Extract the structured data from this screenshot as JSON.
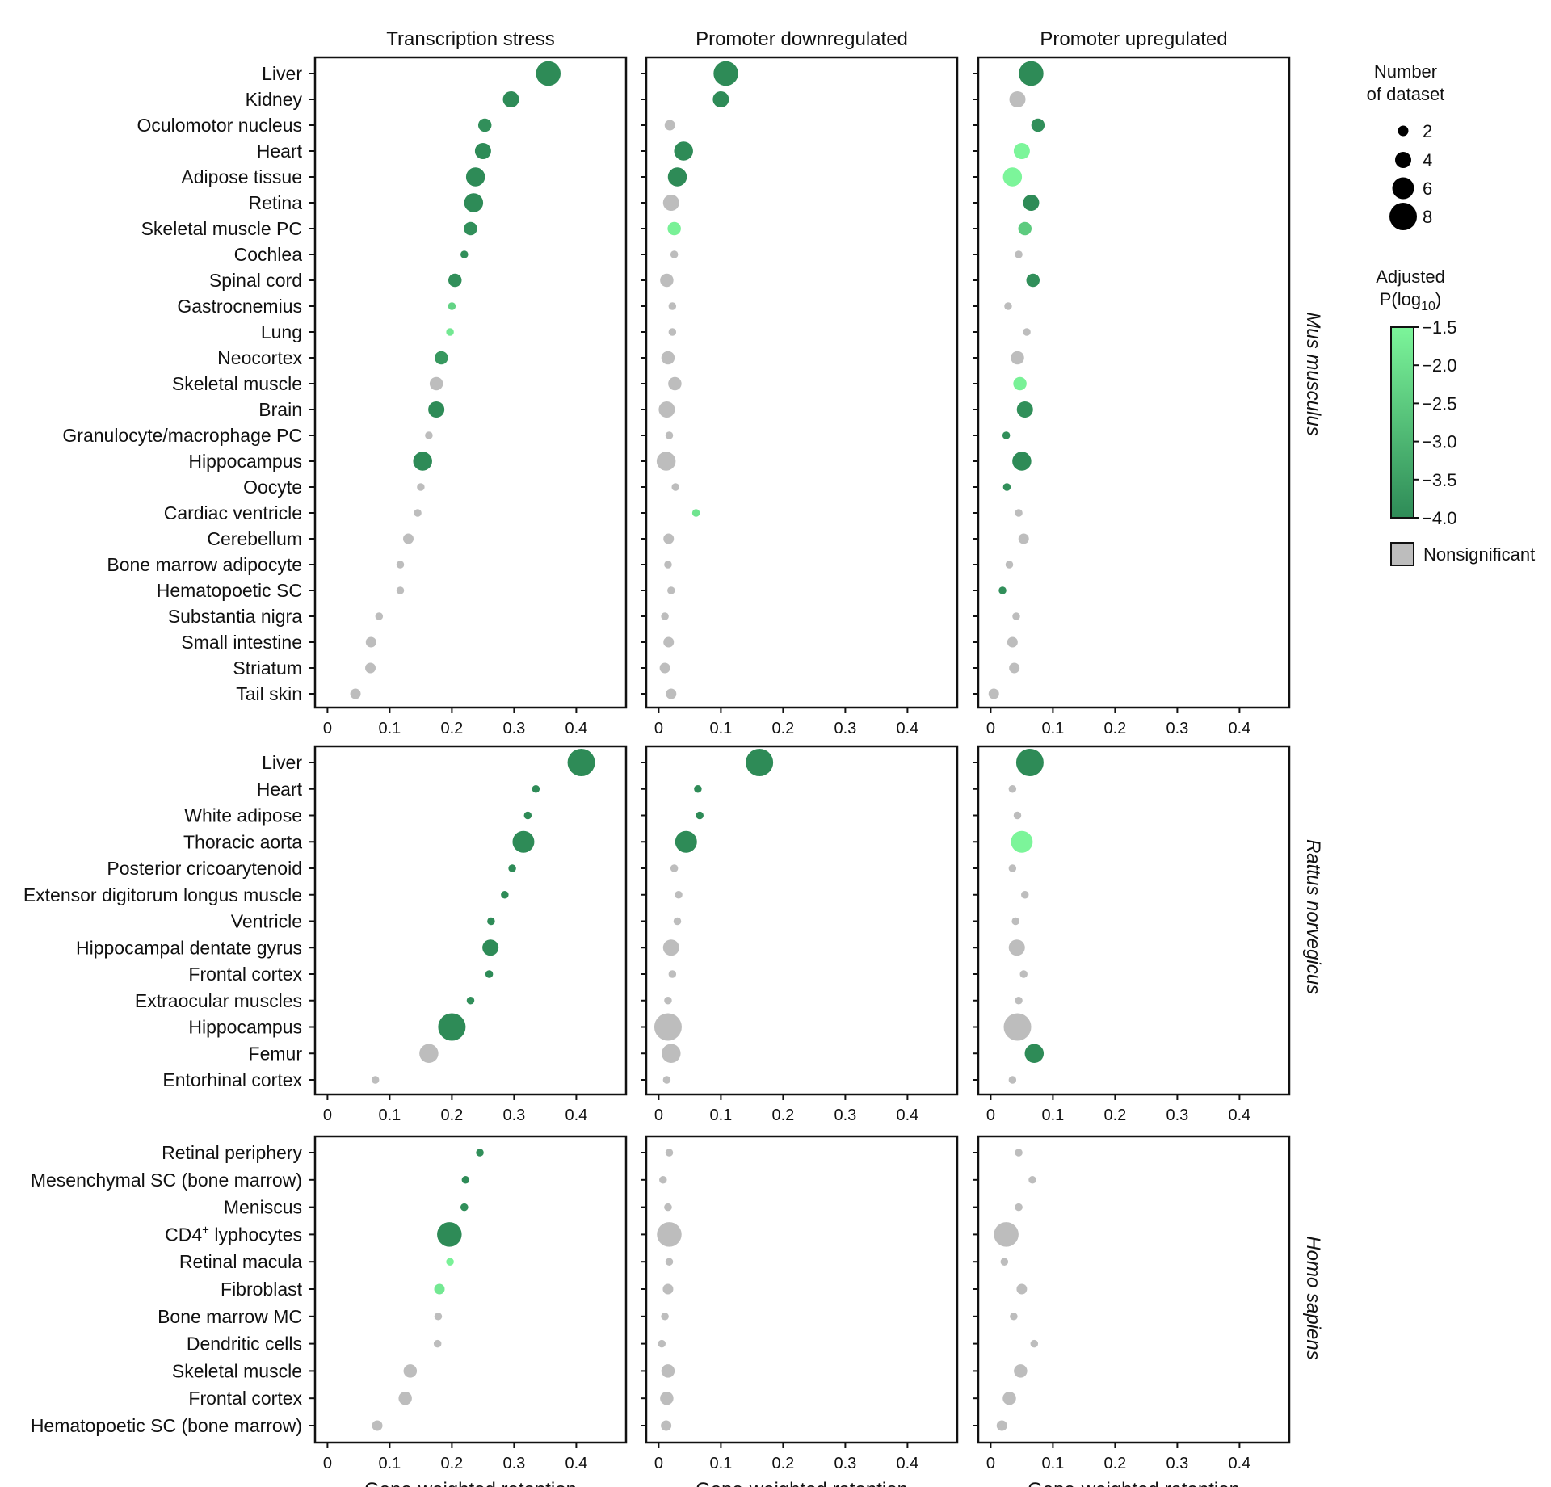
{
  "chart_data": {
    "type": "scatter",
    "column_titles": [
      "Transcription stress",
      "Promoter downregulated",
      "Promoter upregulated"
    ],
    "xlabel": "Gene-weighted retention",
    "xlim": [
      -0.02,
      0.48
    ],
    "xticks": [
      0,
      0.1,
      0.2,
      0.3,
      0.4
    ],
    "xtick_labels": [
      "0",
      "0.1",
      "0.2",
      "0.3",
      "0.4"
    ],
    "colors": {
      "p_low": "#7CF59A",
      "p_high": "#2E8B57",
      "nonsignificant": "#BDBDBD",
      "frame": "#111111"
    },
    "legend": {
      "size_title_line1": "Number",
      "size_title_line2": "of dataset",
      "sizes": [
        2,
        4,
        6,
        8
      ],
      "size_labels": [
        "2",
        "4",
        "6",
        "8"
      ],
      "color_title_line1": "Adjusted",
      "color_title_p": "P(log",
      "color_title_sub": "10",
      "color_title_close": ")",
      "color_min": -4.0,
      "color_max": -1.5,
      "color_ticks": [
        "−1.5",
        "−2.0",
        "−2.5",
        "−3.0",
        "−3.5",
        "−4.0"
      ],
      "nonsig_label": "Nonsignificant"
    },
    "species": [
      {
        "name": "Mus musculus",
        "categories": [
          "Liver",
          "Kidney",
          "Oculomotor nucleus",
          "Heart",
          "Adipose tissue",
          "Retina",
          "Skeletal muscle PC",
          "Cochlea",
          "Spinal cord",
          "Gastrocnemius",
          "Lung",
          "Neocortex",
          "Skeletal muscle",
          "Brain",
          "Granulocyte/macrophage PC",
          "Hippocampus",
          "Oocyte",
          "Cardiac ventricle",
          "Cerebellum",
          "Bone marrow adipocyte",
          "Hematopoetic SC",
          "Substantia nigra",
          "Small intestine",
          "Striatum",
          "Tail skin"
        ],
        "panels": [
          {
            "x": [
              0.355,
              0.295,
              0.253,
              0.25,
              0.238,
              0.235,
              0.23,
              0.22,
              0.205,
              0.2,
              0.197,
              0.183,
              0.175,
              0.175,
              0.163,
              0.153,
              0.15,
              0.145,
              0.13,
              0.117,
              0.117,
              0.083,
              0.07,
              0.069,
              0.045
            ],
            "size": [
              7,
              4,
              3,
              4,
              5,
              5,
              3,
              1,
              3,
              1,
              1,
              3,
              3,
              4,
              1,
              5,
              1,
              1,
              2,
              1,
              1,
              1,
              2,
              2,
              2
            ],
            "p": [
              -4.0,
              -4.0,
              -3.9,
              -4.0,
              -4.0,
              -4.0,
              -3.9,
              -3.9,
              -3.9,
              -2.3,
              -1.8,
              -3.7,
              null,
              -4.0,
              null,
              -4.0,
              null,
              null,
              null,
              null,
              null,
              null,
              null,
              null,
              null
            ]
          },
          {
            "x": [
              0.108,
              0.1,
              0.018,
              0.04,
              0.03,
              0.02,
              0.025,
              0.025,
              0.013,
              0.022,
              0.022,
              0.015,
              0.026,
              0.013,
              0.017,
              0.012,
              0.027,
              0.06,
              0.016,
              0.015,
              0.02,
              0.01,
              0.016,
              0.01,
              0.02
            ],
            "size": [
              7,
              4,
              2,
              5,
              5,
              4,
              3,
              1,
              3,
              1,
              1,
              3,
              3,
              4,
              1,
              5,
              1,
              1,
              2,
              1,
              1,
              1,
              2,
              2,
              2
            ],
            "p": [
              -4.0,
              -4.0,
              null,
              -4.0,
              -4.0,
              null,
              -1.6,
              null,
              null,
              null,
              null,
              null,
              null,
              null,
              null,
              null,
              null,
              -1.9,
              null,
              null,
              null,
              null,
              null,
              null,
              null
            ]
          },
          {
            "x": [
              0.065,
              0.043,
              0.076,
              0.05,
              0.035,
              0.065,
              0.055,
              0.045,
              0.068,
              0.028,
              0.058,
              0.043,
              0.047,
              0.055,
              0.025,
              0.05,
              0.026,
              0.045,
              0.053,
              0.03,
              0.019,
              0.041,
              0.035,
              0.038,
              0.005
            ],
            "size": [
              7,
              4,
              3,
              4,
              5,
              4,
              3,
              1,
              3,
              1,
              1,
              3,
              3,
              4,
              1,
              5,
              1,
              1,
              2,
              1,
              1,
              1,
              2,
              2,
              2
            ],
            "p": [
              -4.0,
              null,
              -3.9,
              -1.5,
              -1.5,
              -4.0,
              -2.5,
              null,
              -3.9,
              null,
              null,
              null,
              -1.6,
              -3.9,
              -3.9,
              -4.0,
              -3.9,
              null,
              null,
              null,
              -3.9,
              null,
              null,
              null,
              null
            ]
          }
        ]
      },
      {
        "name": "Rattus norvegicus",
        "categories": [
          "Liver",
          "Heart",
          "White adipose",
          "Thoracic aorta",
          "Posterior cricoarytenoid",
          "Extensor digitorum longus muscle",
          "Ventricle",
          "Hippocampal dentate gyrus",
          "Frontal cortex",
          "Extraocular muscles",
          "Hippocampus",
          "Femur",
          "Entorhinal cortex"
        ],
        "panels": [
          {
            "x": [
              0.408,
              0.335,
              0.322,
              0.315,
              0.297,
              0.285,
              0.263,
              0.262,
              0.26,
              0.23,
              0.2,
              0.163,
              0.077
            ],
            "size": [
              8,
              1,
              1,
              6,
              1,
              1,
              1,
              4,
              1,
              1,
              8,
              5,
              1
            ],
            "p": [
              -4.0,
              -4.0,
              -4.0,
              -4.0,
              -4.0,
              -4.0,
              -4.0,
              -4.0,
              -4.0,
              -3.9,
              -4.0,
              null,
              null
            ]
          },
          {
            "x": [
              0.162,
              0.063,
              0.066,
              0.044,
              0.025,
              0.032,
              0.03,
              0.02,
              0.022,
              0.015,
              0.015,
              0.02,
              0.013
            ],
            "size": [
              8,
              1,
              1,
              6,
              1,
              1,
              1,
              4,
              1,
              1,
              8,
              5,
              1
            ],
            "p": [
              -4.0,
              -4.0,
              -4.0,
              -4.0,
              null,
              null,
              null,
              null,
              null,
              null,
              null,
              null,
              null
            ]
          },
          {
            "x": [
              0.063,
              0.035,
              0.043,
              0.05,
              0.035,
              0.055,
              0.04,
              0.042,
              0.053,
              0.045,
              0.043,
              0.07,
              0.035
            ],
            "size": [
              8,
              1,
              1,
              6,
              1,
              1,
              1,
              4,
              1,
              1,
              8,
              5,
              1
            ],
            "p": [
              -4.0,
              null,
              null,
              -1.5,
              null,
              null,
              null,
              null,
              null,
              null,
              null,
              -4.0,
              null
            ]
          }
        ]
      },
      {
        "name": "Homo sapiens",
        "categories": [
          "Retinal periphery",
          "Mesenchymal SC (bone marrow)",
          "Meniscus",
          "CD4+ lyphocytes",
          "Retinal macula",
          "Fibroblast",
          "Bone marrow MC",
          "Dendritic cells",
          "Skeletal muscle",
          "Frontal cortex",
          "Hematopoetic SC (bone marrow)"
        ],
        "panels": [
          {
            "x": [
              0.245,
              0.222,
              0.22,
              0.196,
              0.197,
              0.18,
              0.178,
              0.177,
              0.133,
              0.125,
              0.08
            ],
            "size": [
              1,
              1,
              1,
              7,
              1,
              2,
              1,
              1,
              3,
              3,
              2
            ],
            "p": [
              -3.9,
              -4.0,
              -3.9,
              -4.0,
              -1.6,
              -1.8,
              null,
              null,
              null,
              null,
              null
            ]
          },
          {
            "x": [
              0.017,
              0.007,
              0.015,
              0.017,
              0.017,
              0.015,
              0.01,
              0.005,
              0.015,
              0.013,
              0.012
            ],
            "size": [
              1,
              1,
              1,
              7,
              1,
              2,
              1,
              1,
              3,
              3,
              2
            ],
            "p": [
              null,
              null,
              null,
              null,
              null,
              null,
              null,
              null,
              null,
              null,
              null
            ]
          },
          {
            "x": [
              0.045,
              0.067,
              0.045,
              0.025,
              0.022,
              0.05,
              0.037,
              0.07,
              0.048,
              0.03,
              0.018
            ],
            "size": [
              1,
              1,
              1,
              7,
              1,
              2,
              1,
              1,
              3,
              3,
              2
            ],
            "p": [
              null,
              null,
              null,
              null,
              null,
              null,
              null,
              null,
              null,
              null,
              null
            ]
          }
        ]
      }
    ]
  }
}
